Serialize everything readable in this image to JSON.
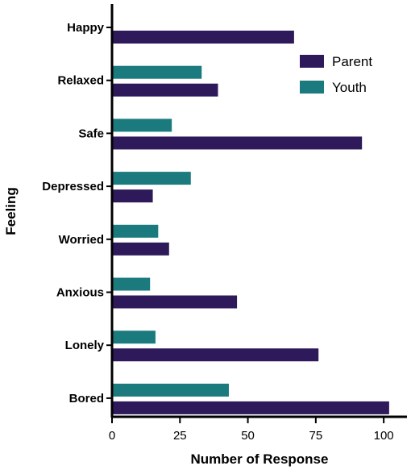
{
  "chart_data": {
    "type": "bar",
    "orientation": "horizontal",
    "categories": [
      "Happy",
      "Relaxed",
      "Safe",
      "Depressed",
      "Worried",
      "Anxious",
      "Lonely",
      "Bored"
    ],
    "series": [
      {
        "name": "Parent",
        "color": "#2e1a5a",
        "values": [
          67,
          39,
          92,
          15,
          21,
          46,
          76,
          102
        ]
      },
      {
        "name": "Youth",
        "color": "#1a7a7e",
        "values": [
          null,
          33,
          22,
          29,
          17,
          14,
          16,
          43
        ]
      }
    ],
    "xlabel": "Number of Response",
    "ylabel": "Feeling",
    "xlim": [
      0,
      105
    ],
    "xticks": [
      0,
      25,
      50,
      75,
      100
    ],
    "legend_position": "top-right",
    "grid": false
  }
}
